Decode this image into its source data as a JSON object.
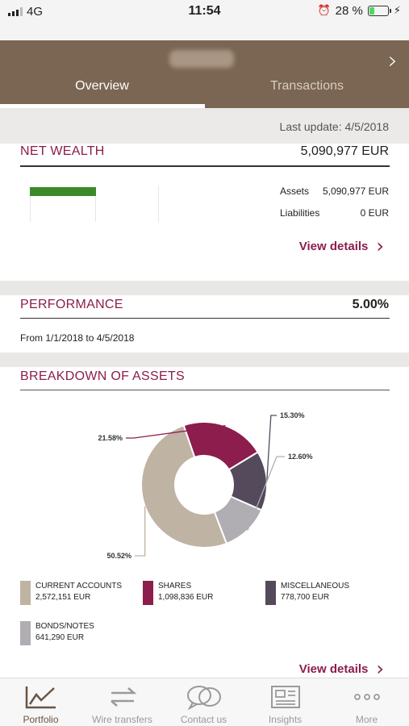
{
  "status_bar": {
    "network": "4G",
    "time": "11:54",
    "battery_percent": "28 %",
    "battery_level": 0.28
  },
  "header": {
    "account_name": "········",
    "tabs": [
      "Overview",
      "Transactions"
    ],
    "active_tab": 0
  },
  "last_update": "Last update: 4/5/2018",
  "net_wealth": {
    "title": "NET WEALTH",
    "value": "5,090,977 EUR",
    "assets_label": "Assets",
    "assets_value": "5,090,977 EUR",
    "liabilities_label": "Liabilities",
    "liabilities_value": "0 EUR",
    "view_details": "View details"
  },
  "performance": {
    "title": "PERFORMANCE",
    "value": "5.00%",
    "period": "From 1/1/2018 to 4/5/2018"
  },
  "breakdown": {
    "title": "BREAKDOWN OF ASSETS",
    "legend": [
      {
        "name": "CURRENT ACCOUNTS",
        "value": "2,572,151 EUR",
        "color": "#bfb3a3"
      },
      {
        "name": "SHARES",
        "value": "1,098,836 EUR",
        "color": "#8c1d4c"
      },
      {
        "name": "MISCELLANEOUS",
        "value": "778,700 EUR",
        "color": "#544a5c"
      },
      {
        "name": "BONDS/NOTES",
        "value": "641,290 EUR",
        "color": "#b0adb3"
      }
    ],
    "view_details": "View details"
  },
  "chart_data": {
    "type": "pie",
    "donut": true,
    "categories": [
      "CURRENT ACCOUNTS",
      "SHARES",
      "MISCELLANEOUS",
      "BONDS/NOTES"
    ],
    "values": [
      50.52,
      21.58,
      15.3,
      12.6
    ],
    "labels": [
      "50.52%",
      "21.58%",
      "15.30%",
      "12.60%"
    ],
    "colors": [
      "#bfb3a3",
      "#8c1d4c",
      "#544a5c",
      "#b0adb3"
    ]
  },
  "bottom_nav": {
    "items": [
      {
        "label": "Portfolio",
        "icon": "chart-line-icon"
      },
      {
        "label": "Wire transfers",
        "icon": "transfer-arrows-icon"
      },
      {
        "label": "Contact us",
        "icon": "chat-bubbles-icon"
      },
      {
        "label": "Insights",
        "icon": "newspaper-icon"
      },
      {
        "label": "More",
        "icon": "more-dots-icon"
      }
    ],
    "active": 0
  },
  "colors": {
    "brand": "#7a6652",
    "accent": "#8c1d4c",
    "assets_bar": "#3a8a2a"
  }
}
